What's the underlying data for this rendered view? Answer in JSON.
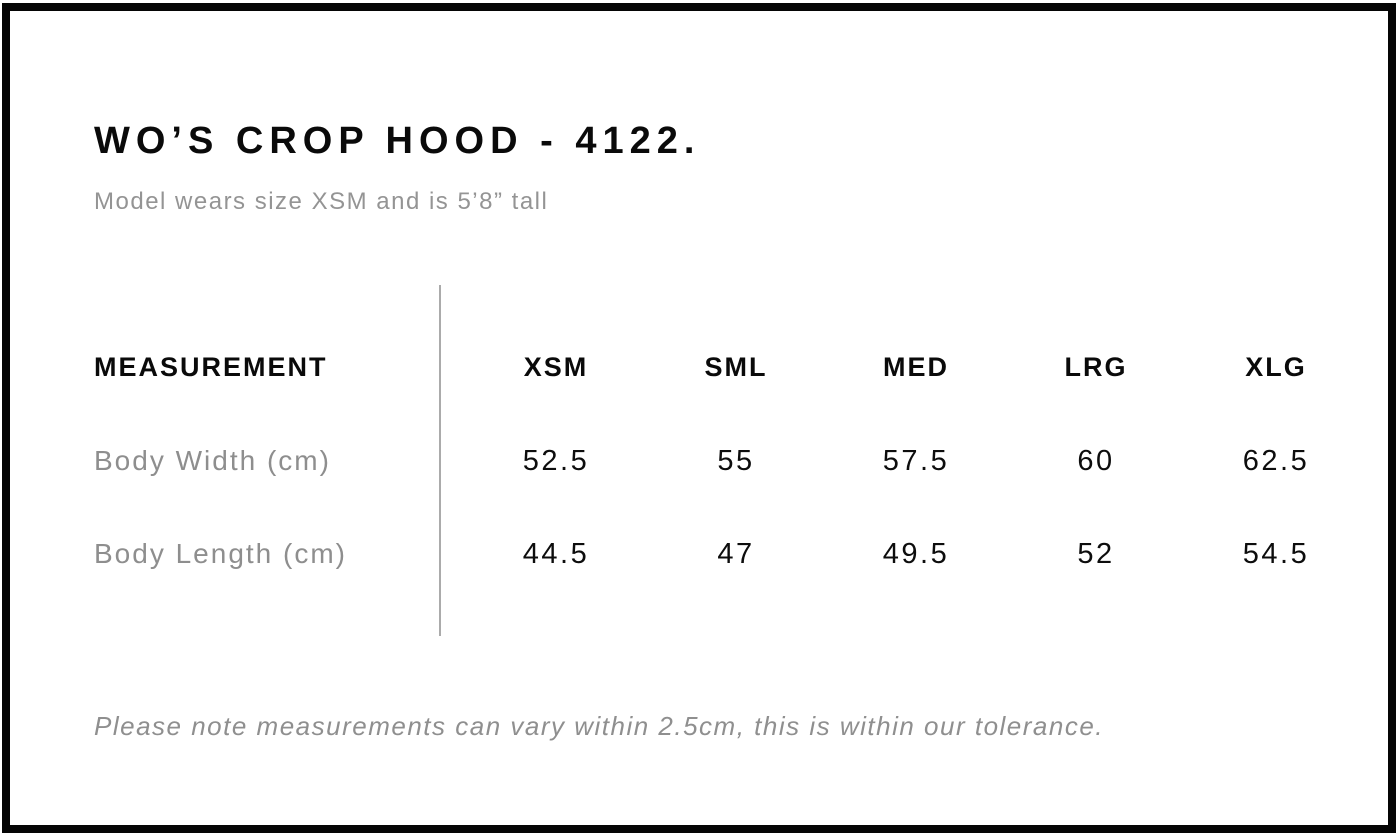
{
  "header": {
    "title": "WO’S CROP HOOD - 4122.",
    "subtitle": "Model wears size XSM and is 5’8” tall"
  },
  "size_chart": {
    "measurement_header": "MEASUREMENT",
    "size_headers": [
      "XSM",
      "SML",
      "MED",
      "LRG",
      "XLG"
    ],
    "rows": [
      {
        "label": "Body Width (cm)",
        "values": [
          "52.5",
          "55",
          "57.5",
          "60",
          "62.5"
        ]
      },
      {
        "label": "Body Length (cm)",
        "values": [
          "44.5",
          "47",
          "49.5",
          "52",
          "54.5"
        ]
      }
    ]
  },
  "footer": {
    "note": "Please note measurements can vary within 2.5cm, this is within our tolerance."
  },
  "colors": {
    "frame_border": "#050505",
    "primary_text": "#0a0a0a",
    "muted_text": "#8e8e8e",
    "divider_line": "#ababab",
    "background": "#ffffff"
  }
}
